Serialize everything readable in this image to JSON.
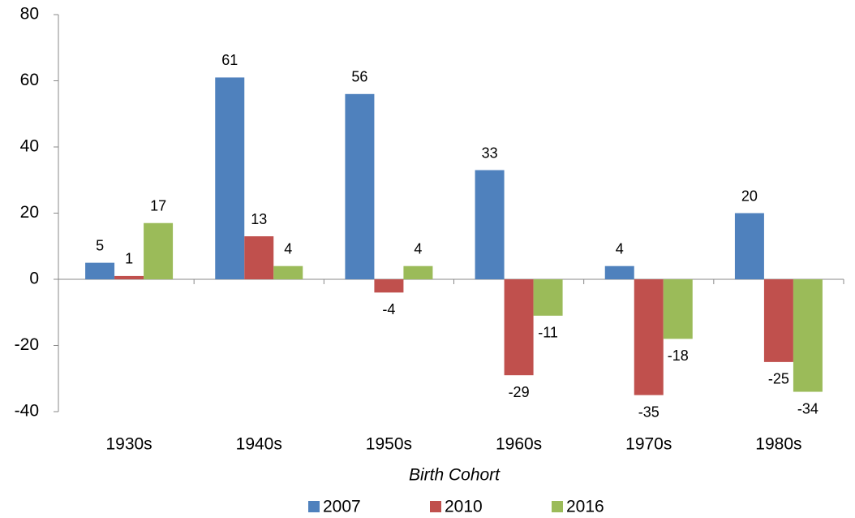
{
  "chart_data": {
    "type": "bar",
    "x_label": "Birth Cohort",
    "categories": [
      "1930s",
      "1940s",
      "1950s",
      "1960s",
      "1970s",
      "1980s"
    ],
    "series": [
      {
        "name": "2007",
        "color": "#4f81bd",
        "values": [
          5,
          61,
          56,
          33,
          4,
          20
        ]
      },
      {
        "name": "2010",
        "color": "#c0504d",
        "values": [
          1,
          13,
          -4,
          -29,
          -35,
          -25
        ]
      },
      {
        "name": "2016",
        "color": "#9bbb59",
        "values": [
          17,
          4,
          4,
          -11,
          -18,
          -34
        ]
      }
    ],
    "ylim": [
      -40,
      80
    ],
    "yticks": [
      -40,
      -20,
      0,
      20,
      40,
      60,
      80
    ],
    "grid": false,
    "legend": "bottom"
  }
}
